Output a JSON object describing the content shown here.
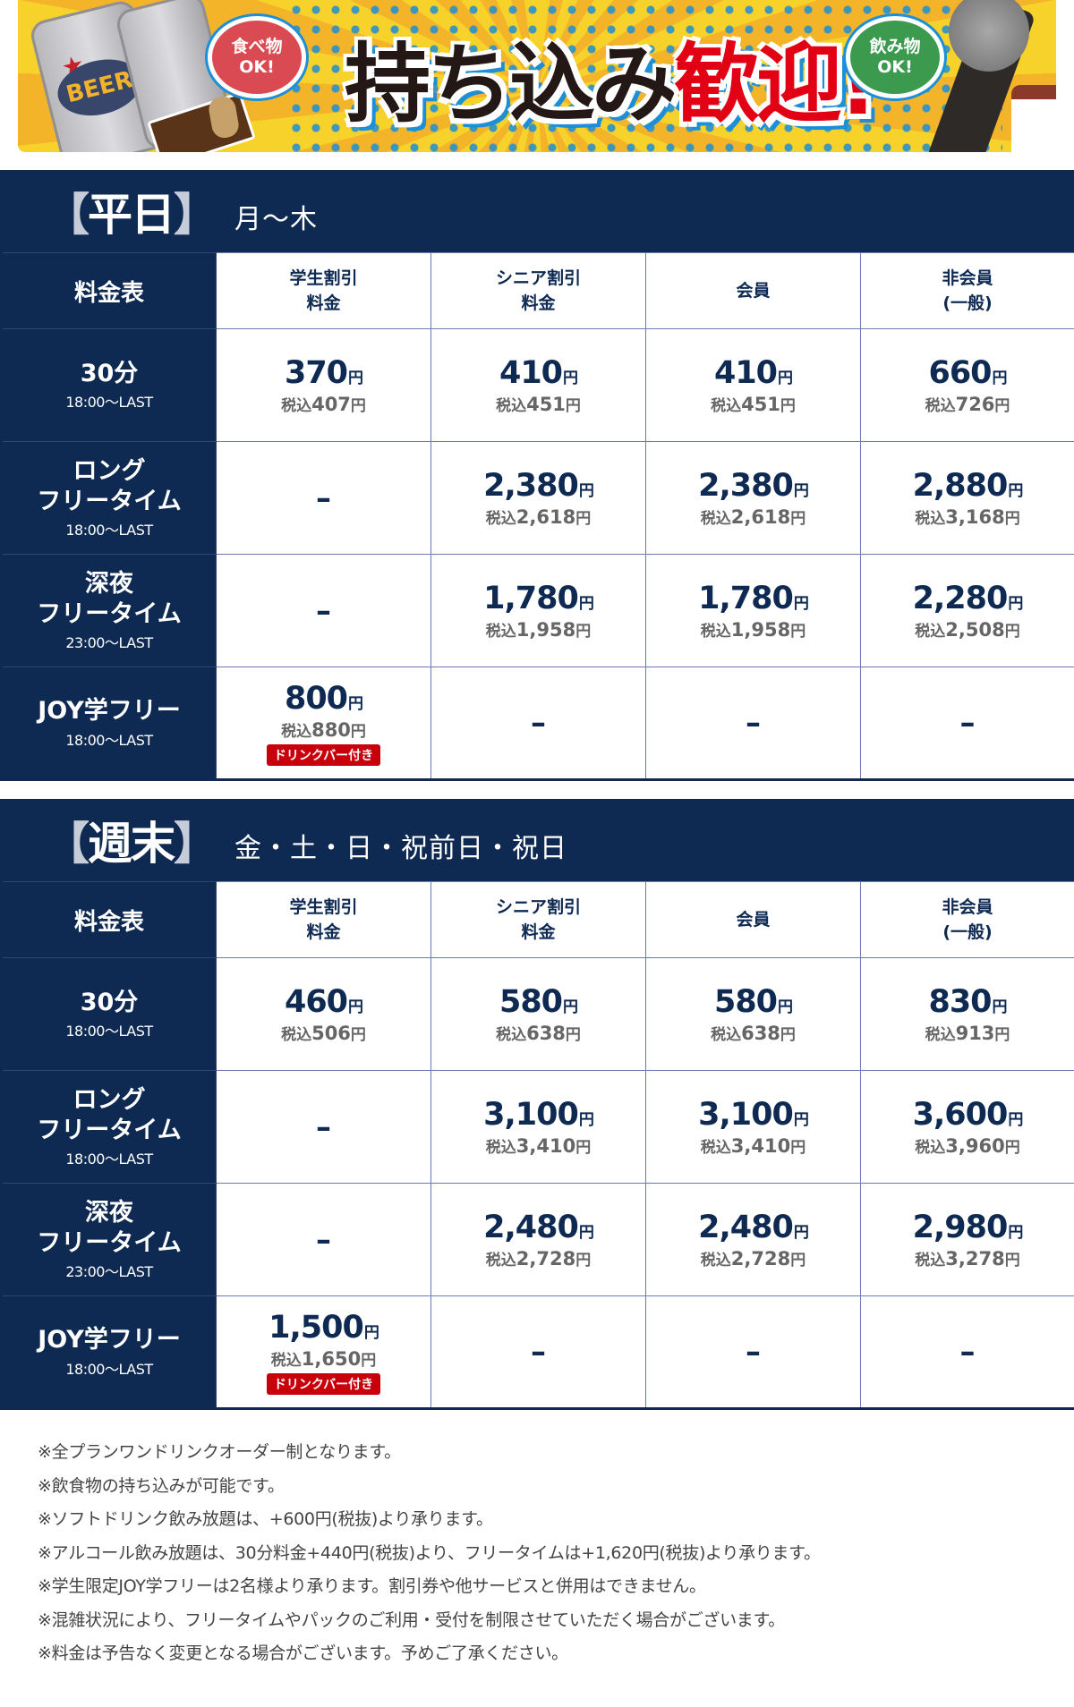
{
  "banner": {
    "headline_black": "持ち込み",
    "headline_red": "歓迎!",
    "bubble_food": [
      "食べ物",
      "OK!"
    ],
    "bubble_drink": [
      "飲み物",
      "OK!"
    ],
    "can_label": "BEER",
    "colors": {
      "navy": "#0f2a52",
      "red": "#e10014",
      "yellow": "#f7d22a",
      "blue": "#1c8fd6"
    }
  },
  "weekday": {
    "title": "【平日】",
    "title_open": "【",
    "title_text": "平日",
    "title_close": "】",
    "days": "月〜木",
    "corner": "料金表",
    "columns": [
      [
        "学生割引",
        "料金"
      ],
      [
        "シニア割引",
        "料金"
      ],
      [
        "会員"
      ],
      [
        "非会員",
        "(一般)"
      ]
    ],
    "rows": [
      {
        "name": [
          "30分"
        ],
        "time": "18:00〜LAST",
        "cells": [
          {
            "price": "370",
            "tax": "407"
          },
          {
            "price": "410",
            "tax": "451"
          },
          {
            "price": "410",
            "tax": "451"
          },
          {
            "price": "660",
            "tax": "726"
          }
        ]
      },
      {
        "name": [
          "ロング",
          "フリータイム"
        ],
        "time": "18:00〜LAST",
        "cells": [
          {
            "dash": "–"
          },
          {
            "price": "2,380",
            "tax": "2,618"
          },
          {
            "price": "2,380",
            "tax": "2,618"
          },
          {
            "price": "2,880",
            "tax": "3,168"
          }
        ]
      },
      {
        "name": [
          "深夜",
          "フリータイム"
        ],
        "time": "23:00〜LAST",
        "cells": [
          {
            "dash": "–"
          },
          {
            "price": "1,780",
            "tax": "1,958"
          },
          {
            "price": "1,780",
            "tax": "1,958"
          },
          {
            "price": "2,280",
            "tax": "2,508"
          }
        ]
      },
      {
        "name": [
          "JOY学フリー"
        ],
        "time": "18:00〜LAST",
        "cells": [
          {
            "price": "800",
            "tax": "880",
            "badge": "ドリンクバー付き"
          },
          {
            "dash": "–"
          },
          {
            "dash": "–"
          },
          {
            "dash": "–"
          }
        ]
      }
    ]
  },
  "weekend": {
    "title_open": "【",
    "title_text": "週末",
    "title_close": "】",
    "days": "金・土・日・祝前日・祝日",
    "corner": "料金表",
    "columns": [
      [
        "学生割引",
        "料金"
      ],
      [
        "シニア割引",
        "料金"
      ],
      [
        "会員"
      ],
      [
        "非会員",
        "(一般)"
      ]
    ],
    "rows": [
      {
        "name": [
          "30分"
        ],
        "time": "18:00〜LAST",
        "cells": [
          {
            "price": "460",
            "tax": "506"
          },
          {
            "price": "580",
            "tax": "638"
          },
          {
            "price": "580",
            "tax": "638"
          },
          {
            "price": "830",
            "tax": "913"
          }
        ]
      },
      {
        "name": [
          "ロング",
          "フリータイム"
        ],
        "time": "18:00〜LAST",
        "cells": [
          {
            "dash": "–"
          },
          {
            "price": "3,100",
            "tax": "3,410"
          },
          {
            "price": "3,100",
            "tax": "3,410"
          },
          {
            "price": "3,600",
            "tax": "3,960"
          }
        ]
      },
      {
        "name": [
          "深夜",
          "フリータイム"
        ],
        "time": "23:00〜LAST",
        "cells": [
          {
            "dash": "–"
          },
          {
            "price": "2,480",
            "tax": "2,728"
          },
          {
            "price": "2,480",
            "tax": "2,728"
          },
          {
            "price": "2,980",
            "tax": "3,278"
          }
        ]
      },
      {
        "name": [
          "JOY学フリー"
        ],
        "time": "18:00〜LAST",
        "cells": [
          {
            "price": "1,500",
            "tax": "1,650",
            "badge": "ドリンクバー付き"
          },
          {
            "dash": "–"
          },
          {
            "dash": "–"
          },
          {
            "dash": "–"
          }
        ]
      }
    ]
  },
  "labels": {
    "yen": "円",
    "tax_prefix": "税込"
  },
  "notes": [
    "※全プランワンドリンクオーダー制となります。",
    "※飲食物の持ち込みが可能です。",
    "※ソフトドリンク飲み放題は、+600円(税抜)より承ります。",
    "※アルコール飲み放題は、30分料金+440円(税抜)より、フリータイムは+1,620円(税抜)より承ります。",
    "※学生限定JOY学フリーは2名様より承ります。割引券や他サービスと併用はできません。",
    "※混雑状況により、フリータイムやパックのご利用・受付を制限させていただく場合がございます。",
    "※料金は予告なく変更となる場合がございます。予めご了承ください。"
  ]
}
